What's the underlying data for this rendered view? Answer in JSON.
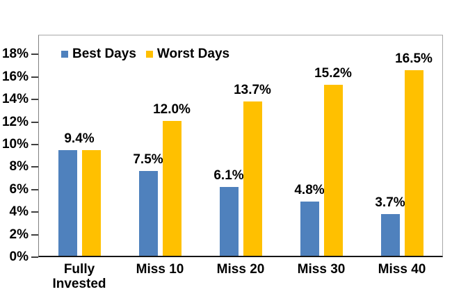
{
  "chart_data": {
    "type": "bar",
    "title": "",
    "xlabel": "",
    "ylabel": "",
    "categories": [
      "Fully\nInvested",
      "Miss 10",
      "Miss 20",
      "Miss 30",
      "Miss 40"
    ],
    "series": [
      {
        "name": "Best Days",
        "color": "#4F81BD",
        "values": [
          9.4,
          7.5,
          6.1,
          4.8,
          3.7
        ],
        "labels": [
          "9.4%",
          "7.5%",
          "6.1%",
          "4.8%",
          "3.7%"
        ]
      },
      {
        "name": "Worst Days",
        "color": "#FFC000",
        "values": [
          9.4,
          12.0,
          13.7,
          15.2,
          16.5
        ],
        "labels": [
          "",
          "12.0%",
          "13.7%",
          "15.2%",
          "16.5%"
        ]
      }
    ],
    "first_group_label_centered_on_group": true,
    "y_axis": {
      "tick_labels": [
        "0%",
        "2%",
        "4%",
        "6%",
        "8%",
        "10%",
        "12%",
        "14%",
        "16%",
        "18%"
      ],
      "tick_values": [
        0,
        2,
        4,
        6,
        8,
        10,
        12,
        14,
        16,
        18
      ],
      "ylim": [
        0,
        19.75
      ]
    },
    "legend": {
      "position": "top-inside"
    },
    "grid": false,
    "colors": {
      "plot_border": "#A8A8A8",
      "axis_line": "#808080",
      "baseline": "#151515",
      "tick": "#3F3F3F",
      "text": "#000000",
      "background": "#FFFFFF"
    }
  }
}
